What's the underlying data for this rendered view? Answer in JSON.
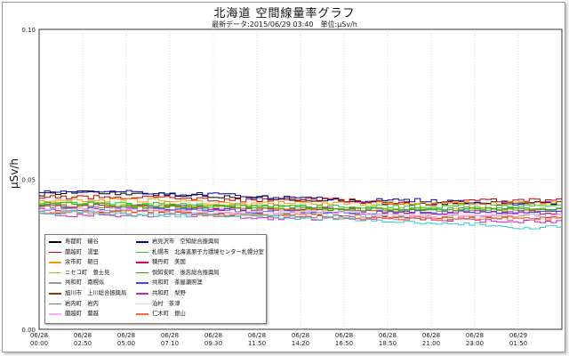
{
  "header": {
    "title": "北海道 空間線量率グラフ",
    "subtitle": "最新データ:2015/06/29 03:40　単位:μSv/h"
  },
  "chart_data": {
    "type": "line",
    "title": "北海道 空間線量率グラフ",
    "subtitle": "最新データ:2015/06/29 03:40　単位:μSv/h",
    "ylabel": "μSv/h",
    "xlabel": "",
    "ylim": [
      0,
      0.1
    ],
    "yticks": [
      "0.00",
      "0.05",
      "0.10"
    ],
    "grid": true,
    "legend_position": "bottom-left",
    "xticks": [
      {
        "date": "06/28",
        "time": "00:00"
      },
      {
        "date": "06/28",
        "time": "02:50"
      },
      {
        "date": "06/28",
        "time": "05:00"
      },
      {
        "date": "06/28",
        "time": "07:10"
      },
      {
        "date": "06/28",
        "time": "09:30"
      },
      {
        "date": "06/28",
        "time": "11:50"
      },
      {
        "date": "06/28",
        "time": "14:20"
      },
      {
        "date": "06/28",
        "time": "16:50"
      },
      {
        "date": "06/28",
        "time": "18:50"
      },
      {
        "date": "06/28",
        "time": "21:00"
      },
      {
        "date": "06/28",
        "time": "23:00"
      },
      {
        "date": "06/29",
        "time": "01:50"
      }
    ],
    "series": [
      {
        "name": "寿都町　磯谷",
        "color": "#000000",
        "values": [
          0.045,
          0.046,
          0.045,
          0.045,
          0.044,
          0.044,
          0.043,
          0.043,
          0.042,
          0.042,
          0.042,
          0.042
        ]
      },
      {
        "name": "岩見沢市　空知総合振興局",
        "color": "#0000aa",
        "values": [
          0.046,
          0.046,
          0.046,
          0.045,
          0.045,
          0.044,
          0.044,
          0.043,
          0.043,
          0.043,
          0.042,
          0.042
        ]
      },
      {
        "name": "蘭越町　湯里",
        "color": "#cc0000",
        "values": [
          0.044,
          0.044,
          0.044,
          0.044,
          0.043,
          0.043,
          0.043,
          0.043,
          0.042,
          0.042,
          0.043,
          0.043
        ]
      },
      {
        "name": "札幌市　北海道原子力環境センター札幌分室",
        "color": "#22cc22",
        "values": [
          0.042,
          0.042,
          0.042,
          0.042,
          0.041,
          0.041,
          0.041,
          0.041,
          0.041,
          0.041,
          0.041,
          0.041
        ]
      },
      {
        "name": "余市町　朝日",
        "color": "#ff9900",
        "values": [
          0.043,
          0.043,
          0.043,
          0.043,
          0.042,
          0.042,
          0.042,
          0.042,
          0.042,
          0.042,
          0.042,
          0.042
        ]
      },
      {
        "name": "積丹町　美国",
        "color": "#cc0066",
        "values": [
          0.041,
          0.041,
          0.041,
          0.041,
          0.04,
          0.04,
          0.04,
          0.04,
          0.039,
          0.039,
          0.039,
          0.039
        ]
      },
      {
        "name": "ニセコ町　曽士見",
        "color": "#bbbb00",
        "values": [
          0.042,
          0.042,
          0.041,
          0.041,
          0.041,
          0.041,
          0.04,
          0.04,
          0.04,
          0.04,
          0.04,
          0.04
        ]
      },
      {
        "name": "倶知安町　後志総合振興局",
        "color": "#668800",
        "values": [
          0.041,
          0.041,
          0.041,
          0.041,
          0.041,
          0.04,
          0.04,
          0.04,
          0.04,
          0.04,
          0.04,
          0.04
        ]
      },
      {
        "name": "共和町　南幌似",
        "color": "#999999",
        "values": [
          0.04,
          0.04,
          0.04,
          0.04,
          0.039,
          0.039,
          0.039,
          0.038,
          0.038,
          0.038,
          0.038,
          0.038
        ]
      },
      {
        "name": "共和町　茶屋瀬照澳",
        "color": "#4444ff",
        "values": [
          0.04,
          0.04,
          0.04,
          0.04,
          0.04,
          0.039,
          0.039,
          0.039,
          0.039,
          0.039,
          0.039,
          0.039
        ]
      },
      {
        "name": "旭川市　上川総合振興局",
        "color": "#993300",
        "values": [
          0.039,
          0.039,
          0.039,
          0.039,
          0.038,
          0.038,
          0.038,
          0.038,
          0.037,
          0.037,
          0.037,
          0.037
        ]
      },
      {
        "name": "共和町　梨野",
        "color": "#cc22cc",
        "values": [
          0.038,
          0.038,
          0.038,
          0.038,
          0.038,
          0.037,
          0.037,
          0.037,
          0.037,
          0.037,
          0.036,
          0.036
        ]
      },
      {
        "name": "岩内町　岩内",
        "color": "#33aa33",
        "values": [
          0.042,
          0.042,
          0.041,
          0.041,
          0.041,
          0.041,
          0.041,
          0.04,
          0.04,
          0.04,
          0.04,
          0.04
        ]
      },
      {
        "name": "泊村　茶津",
        "color": "#dddddd",
        "values": [
          0.039,
          0.039,
          0.039,
          0.038,
          0.038,
          0.038,
          0.038,
          0.038,
          0.037,
          0.037,
          0.037,
          0.037
        ]
      },
      {
        "name": "蘭越町　蘭越",
        "color": "#ffaaff",
        "values": [
          0.04,
          0.04,
          0.04,
          0.039,
          0.039,
          0.039,
          0.039,
          0.039,
          0.038,
          0.038,
          0.038,
          0.038
        ]
      },
      {
        "name": "仁木町　銀山",
        "color": "#ff6633",
        "values": [
          0.039,
          0.039,
          0.039,
          0.039,
          0.038,
          0.038,
          0.038,
          0.037,
          0.037,
          0.037,
          0.037,
          0.037
        ]
      },
      {
        "name": "",
        "color": "#33cccc",
        "values": [
          0.039,
          0.039,
          0.038,
          0.038,
          0.038,
          0.038,
          0.037,
          0.037,
          0.036,
          0.035,
          0.035,
          0.034
        ]
      }
    ]
  }
}
